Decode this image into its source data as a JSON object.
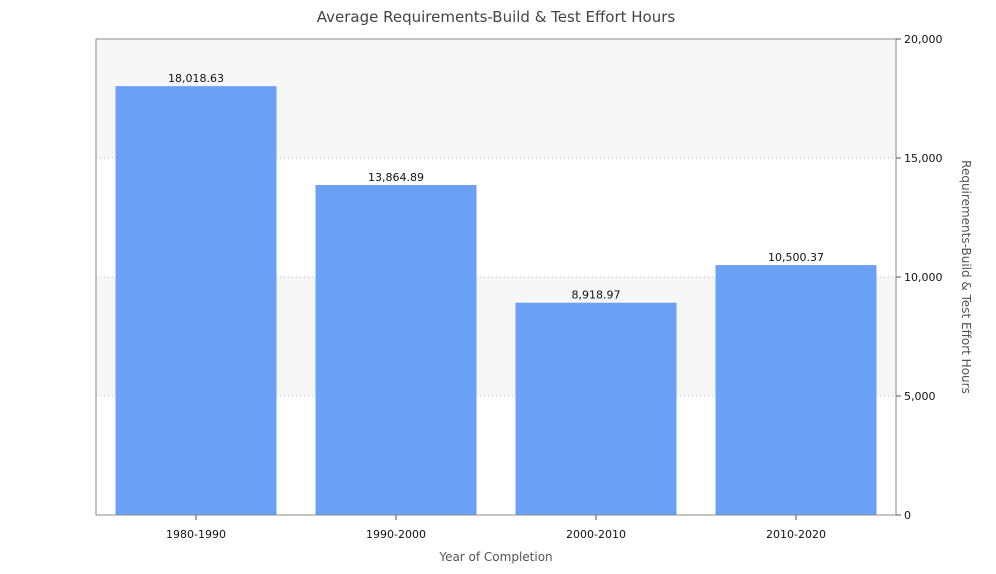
{
  "chart_data": {
    "type": "bar",
    "title": "Average Requirements-Build & Test Effort Hours",
    "xlabel": "Year of Completion",
    "ylabel": "Requirements-Build & Test Effort Hours",
    "categories": [
      "1980-1990",
      "1990-2000",
      "2000-2010",
      "2010-2020"
    ],
    "values": [
      18018.63,
      13864.89,
      8918.97,
      10500.37
    ],
    "value_labels": [
      "18,018.63",
      "13,864.89",
      "8,918.97",
      "10,500.37"
    ],
    "ylim": [
      0,
      20000
    ],
    "yticks": [
      0,
      5000,
      10000,
      15000,
      20000
    ],
    "ytick_labels": [
      "0",
      "5,000",
      "10,000",
      "15,000",
      "20,000"
    ],
    "y_axis_side": "right",
    "grid": true,
    "bar_color": "#6aa1f5",
    "band_color": "#f7f7f7"
  }
}
